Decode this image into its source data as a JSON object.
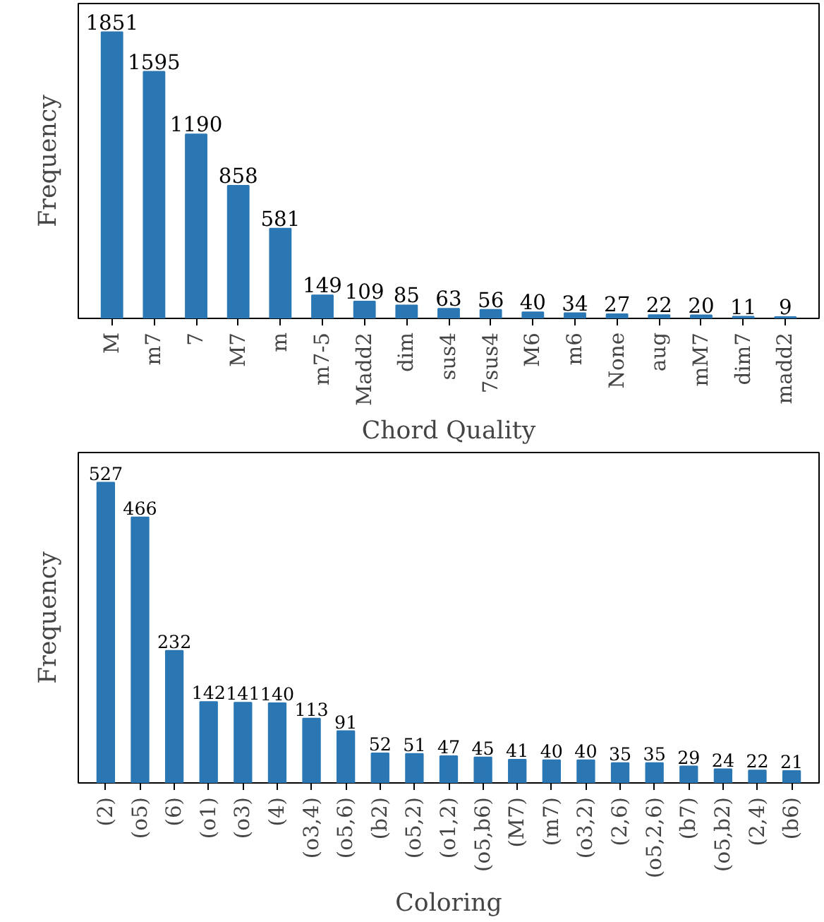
{
  "chart_data": [
    {
      "type": "bar",
      "xlabel": "Chord Quality",
      "ylabel": "Frequency",
      "color": "#2a77b4",
      "data_labels": true,
      "tick_labels": "x",
      "grid": false,
      "categories": [
        "M",
        "m7",
        "7",
        "M7",
        "m",
        "m7-5",
        "Madd2",
        "dim",
        "sus4",
        "7sus4",
        "M6",
        "m6",
        "None",
        "aug",
        "mM7",
        "dim7",
        "madd2"
      ],
      "values": [
        1851,
        1595,
        1190,
        858,
        581,
        149,
        109,
        85,
        63,
        56,
        40,
        34,
        27,
        22,
        20,
        11,
        9
      ]
    },
    {
      "type": "bar",
      "xlabel": "Coloring",
      "ylabel": "Frequency",
      "color": "#2a77b4",
      "data_labels": true,
      "tick_labels": "x",
      "grid": false,
      "categories": [
        "(2)",
        "(o5)",
        "(6)",
        "(o1)",
        "(o3)",
        "(4)",
        "(o3,4)",
        "(o5,6)",
        "(b2)",
        "(o5,2)",
        "(o1,2)",
        "(o5,b6)",
        "(M7)",
        "(m7)",
        "(o3,2)",
        "(2,6)",
        "(o5,2,6)",
        "(b7)",
        "(o5,b2)",
        "(2,4)",
        "(b6)"
      ],
      "values": [
        527,
        466,
        232,
        142,
        141,
        140,
        113,
        91,
        52,
        51,
        47,
        45,
        41,
        40,
        40,
        35,
        35,
        29,
        24,
        22,
        21
      ]
    }
  ]
}
